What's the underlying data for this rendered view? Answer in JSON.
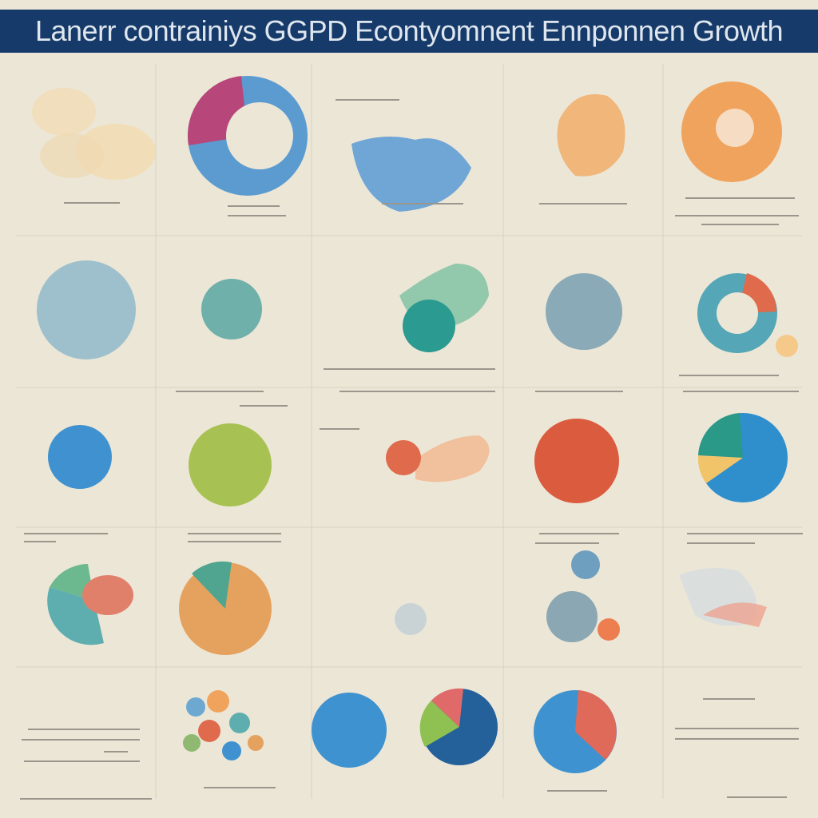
{
  "title": "Lanerr contrainiys GGPD Econtyomnent Ennponnen Growth"
}
